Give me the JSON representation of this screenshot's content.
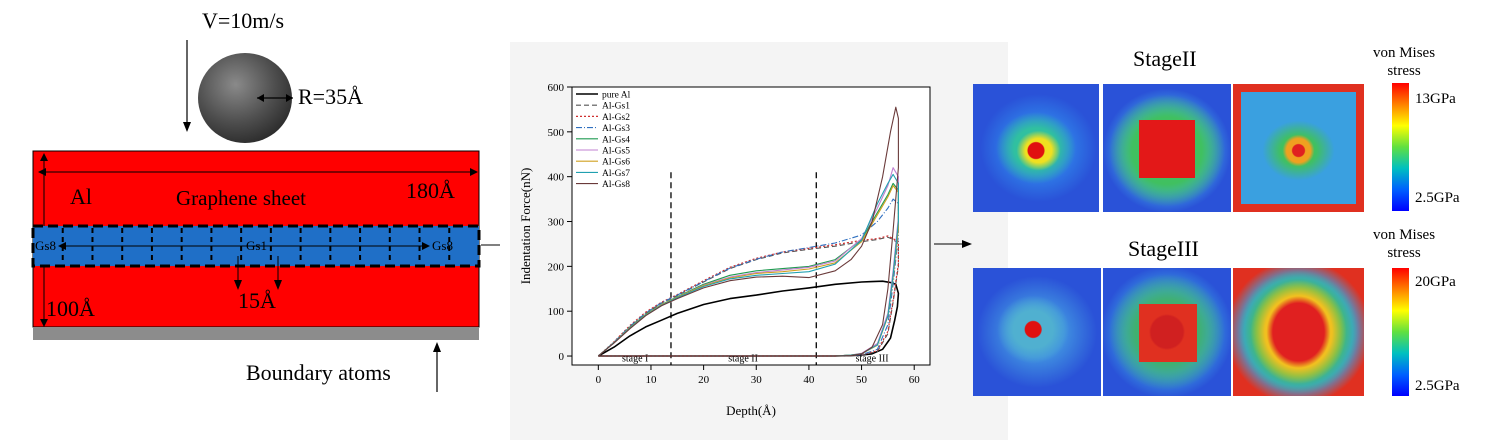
{
  "model": {
    "velocity": "V=10m/s",
    "radius": "R=35Å",
    "al_label": "Al",
    "sheet_label": "Graphene sheet",
    "width": "180Å",
    "height": "100Å",
    "spacing": "15Å",
    "gs_left": "Gs8",
    "gs_center": "Gs1",
    "gs_right": "Gs8",
    "boundary": "Boundary atoms",
    "colors": {
      "al": "#ff0000",
      "sheet": "#1f6fc7",
      "boundary": "#8c8c8c"
    }
  },
  "chart_data": {
    "type": "line",
    "xlabel": "Depth(Å)",
    "ylabel": "Indentation Force(nN)",
    "xlim": [
      -5,
      63
    ],
    "ylim": [
      -20,
      600
    ],
    "xticks": [
      0,
      10,
      20,
      30,
      40,
      50,
      60
    ],
    "yticks": [
      0,
      100,
      200,
      300,
      400,
      500,
      600
    ],
    "stage_lines": [
      13.8,
      41.4
    ],
    "stage_labels": [
      {
        "text": "stage I",
        "x": 7
      },
      {
        "text": "stage II",
        "x": 27.5
      },
      {
        "text": "stage III",
        "x": 52
      }
    ],
    "series": [
      {
        "name": "pure Al",
        "color": "#000000",
        "dash": "",
        "width": 1.6,
        "x": [
          0,
          3,
          6,
          9,
          12,
          15,
          20,
          25,
          30,
          35,
          40,
          45,
          50,
          52,
          54,
          55.5,
          56.5,
          57,
          56.8,
          56.3,
          55.5,
          54,
          52,
          50,
          48,
          45,
          40,
          30,
          20,
          10,
          0
        ],
        "y": [
          0,
          20,
          45,
          65,
          80,
          95,
          115,
          128,
          136,
          145,
          152,
          160,
          165,
          166,
          167,
          164,
          160,
          140,
          110,
          80,
          40,
          15,
          5,
          2,
          1,
          0,
          0,
          0,
          0,
          0,
          0
        ]
      },
      {
        "name": "Al-Gs1",
        "color": "#555555",
        "dash": "5,3",
        "width": 1.1,
        "x": [
          0,
          3,
          6,
          9,
          12,
          15,
          20,
          25,
          30,
          35,
          40,
          45,
          50,
          53,
          55,
          56,
          57,
          57,
          56,
          55,
          53,
          50,
          45,
          40,
          30,
          20,
          10,
          0
        ],
        "y": [
          0,
          30,
          65,
          95,
          118,
          135,
          165,
          195,
          215,
          230,
          238,
          245,
          255,
          260,
          265,
          260,
          250,
          200,
          120,
          50,
          10,
          2,
          0,
          0,
          0,
          0,
          0,
          0
        ]
      },
      {
        "name": "Al-Gs2",
        "color": "#d03030",
        "dash": "2,2",
        "width": 1.2,
        "x": [
          0,
          3,
          6,
          9,
          12,
          15,
          20,
          25,
          30,
          35,
          40,
          45,
          50,
          53,
          55,
          56,
          57,
          57,
          56,
          55,
          53,
          50,
          45,
          40,
          30,
          20,
          10,
          0
        ],
        "y": [
          0,
          32,
          68,
          98,
          120,
          137,
          168,
          198,
          218,
          232,
          240,
          248,
          258,
          262,
          268,
          262,
          255,
          205,
          125,
          55,
          12,
          3,
          0,
          0,
          0,
          0,
          0,
          0
        ]
      },
      {
        "name": "Al-Gs3",
        "color": "#3070c0",
        "dash": "6,2,1,2",
        "width": 1.1,
        "x": [
          0,
          3,
          6,
          9,
          12,
          15,
          20,
          25,
          30,
          35,
          40,
          45,
          50,
          53,
          55,
          56,
          57,
          57,
          56,
          55,
          53,
          50,
          45,
          40,
          30,
          20,
          10,
          0
        ],
        "y": [
          0,
          31,
          66,
          96,
          119,
          136,
          166,
          196,
          216,
          232,
          242,
          252,
          270,
          300,
          330,
          350,
          340,
          270,
          160,
          70,
          15,
          3,
          0,
          0,
          0,
          0,
          0,
          0
        ]
      },
      {
        "name": "Al-Gs4",
        "color": "#1f9a50",
        "dash": "",
        "width": 1.1,
        "x": [
          0,
          3,
          6,
          9,
          12,
          15,
          20,
          25,
          30,
          35,
          40,
          45,
          50,
          53,
          55,
          56,
          57,
          57,
          56,
          55,
          53,
          50,
          48,
          45,
          40,
          30,
          20,
          10,
          0
        ],
        "y": [
          0,
          30,
          64,
          93,
          115,
          132,
          160,
          180,
          190,
          195,
          200,
          215,
          260,
          320,
          360,
          385,
          370,
          290,
          180,
          90,
          25,
          5,
          2,
          0,
          0,
          0,
          0,
          0,
          0
        ]
      },
      {
        "name": "Al-Gs5",
        "color": "#c080d0",
        "dash": "",
        "width": 1.1,
        "x": [
          0,
          3,
          6,
          9,
          12,
          15,
          20,
          25,
          30,
          35,
          40,
          45,
          50,
          53,
          55,
          56,
          57,
          57,
          56,
          55,
          53,
          50,
          48,
          45,
          40,
          30,
          20,
          10,
          0
        ],
        "y": [
          0,
          30,
          63,
          92,
          114,
          131,
          158,
          176,
          186,
          192,
          198,
          212,
          262,
          330,
          380,
          420,
          400,
          310,
          190,
          95,
          28,
          6,
          2,
          0,
          0,
          0,
          0,
          0,
          0
        ]
      },
      {
        "name": "Al-Gs6",
        "color": "#d0a020",
        "dash": "",
        "width": 1.1,
        "x": [
          0,
          3,
          6,
          9,
          12,
          15,
          20,
          25,
          30,
          35,
          40,
          45,
          50,
          53,
          55,
          56,
          57,
          57,
          56,
          55,
          53,
          50,
          48,
          45,
          40,
          30,
          20,
          10,
          0
        ],
        "y": [
          0,
          30,
          63,
          92,
          114,
          131,
          157,
          174,
          184,
          188,
          194,
          208,
          255,
          315,
          355,
          380,
          365,
          285,
          175,
          88,
          24,
          5,
          2,
          0,
          0,
          0,
          0,
          0,
          0
        ]
      },
      {
        "name": "Al-Gs7",
        "color": "#20a0b0",
        "dash": "",
        "width": 1.1,
        "x": [
          0,
          3,
          6,
          9,
          12,
          15,
          20,
          25,
          30,
          35,
          40,
          45,
          50,
          53,
          55,
          56,
          57,
          57,
          56,
          55,
          53,
          50,
          48,
          45,
          40,
          30,
          20,
          10,
          0
        ],
        "y": [
          0,
          30,
          62,
          91,
          113,
          130,
          155,
          172,
          180,
          184,
          188,
          205,
          258,
          340,
          385,
          405,
          385,
          300,
          180,
          90,
          25,
          5,
          2,
          0,
          0,
          0,
          0,
          0,
          0
        ]
      },
      {
        "name": "Al-Gs8",
        "color": "#6a3a3a",
        "dash": "",
        "width": 1.1,
        "x": [
          0,
          3,
          6,
          9,
          12,
          15,
          20,
          25,
          30,
          35,
          40,
          45,
          48,
          50,
          52,
          54,
          55.5,
          56.5,
          57,
          57,
          56,
          55,
          54,
          52,
          50,
          48,
          45,
          40,
          30,
          20,
          10,
          0
        ],
        "y": [
          0,
          29,
          61,
          90,
          112,
          128,
          152,
          168,
          176,
          178,
          175,
          190,
          215,
          245,
          300,
          400,
          500,
          555,
          530,
          420,
          280,
          150,
          70,
          20,
          5,
          1,
          0,
          0,
          0,
          0,
          0,
          0
        ]
      }
    ]
  },
  "stress_panels": {
    "stage2_title": "StageII",
    "stage3_title": "StageIII",
    "legend_title_1": "von Mises",
    "legend_title_2": "stress",
    "stage2_max": "13GPa",
    "stage2_min": "2.5GPa",
    "stage3_max": "20GPa",
    "stage3_min": "2.5GPa"
  }
}
